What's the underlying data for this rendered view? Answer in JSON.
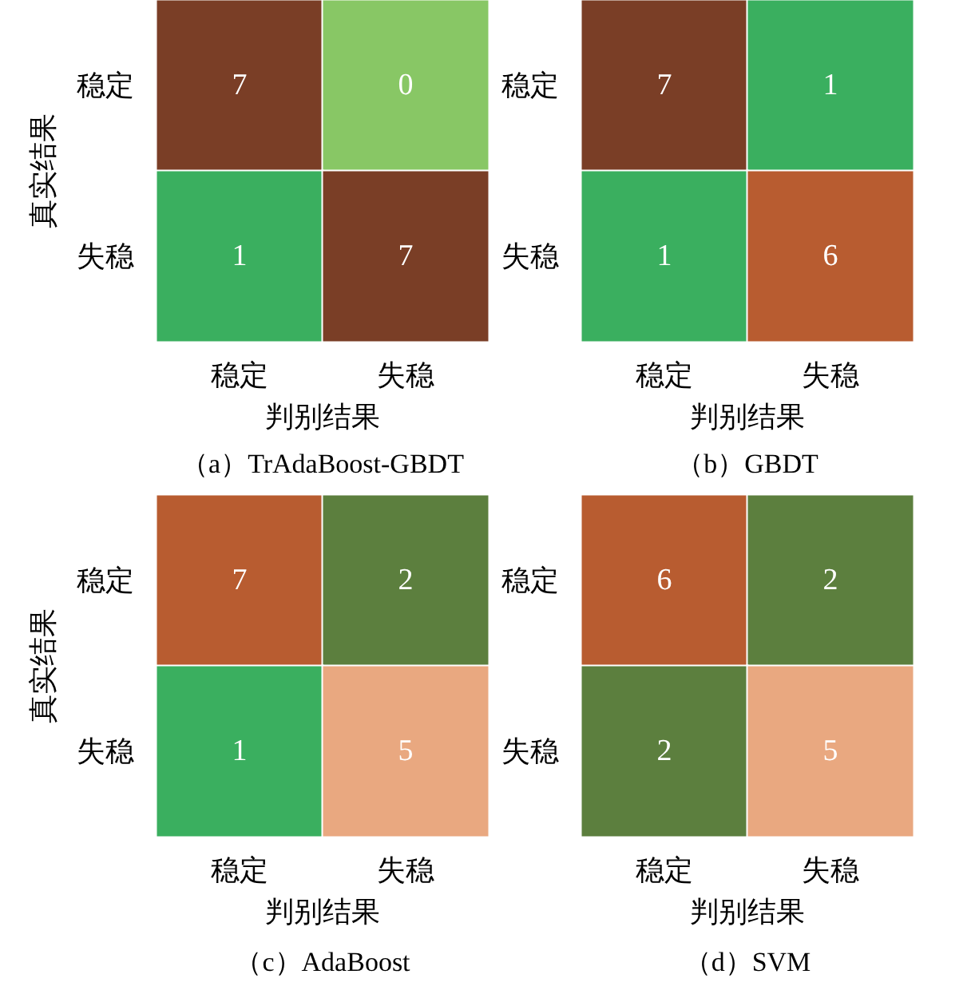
{
  "chart_data": [
    {
      "type": "heatmap",
      "title": "（a）TrAdaBoost-GBDT",
      "xlabel": "判别结果",
      "ylabel": "真实结果",
      "categories": [
        "稳定",
        "失稳"
      ],
      "y_categories": [
        "稳定",
        "失稳"
      ],
      "cells": [
        [
          7,
          0
        ],
        [
          1,
          7
        ]
      ],
      "colors": [
        [
          "#7a3e26",
          "#88c765"
        ],
        [
          "#3aaf5f",
          "#7a3e26"
        ]
      ],
      "data_labels": true
    },
    {
      "type": "heatmap",
      "title": "（b）GBDT",
      "xlabel": "判别结果",
      "categories": [
        "稳定",
        "失稳"
      ],
      "y_categories": [
        "稳定",
        "失稳"
      ],
      "cells": [
        [
          7,
          1
        ],
        [
          1,
          6
        ]
      ],
      "colors": [
        [
          "#7a3e26",
          "#3aaf5f"
        ],
        [
          "#3aaf5f",
          "#b85c30"
        ]
      ],
      "data_labels": true
    },
    {
      "type": "heatmap",
      "title": "（c）AdaBoost",
      "xlabel": "判别结果",
      "ylabel": "真实结果",
      "categories": [
        "稳定",
        "失稳"
      ],
      "y_categories": [
        "稳定",
        "失稳"
      ],
      "cells": [
        [
          7,
          2
        ],
        [
          1,
          5
        ]
      ],
      "colors": [
        [
          "#b85c30",
          "#5c7f3e"
        ],
        [
          "#3aaf5f",
          "#e9a880"
        ]
      ],
      "data_labels": true
    },
    {
      "type": "heatmap",
      "title": "（d）SVM",
      "xlabel": "判别结果",
      "categories": [
        "稳定",
        "失稳"
      ],
      "y_categories": [
        "稳定",
        "失稳"
      ],
      "cells": [
        [
          6,
          2
        ],
        [
          2,
          5
        ]
      ],
      "colors": [
        [
          "#b85c30",
          "#5c7f3e"
        ],
        [
          "#5c7f3e",
          "#e9a880"
        ]
      ],
      "data_labels": true
    }
  ]
}
